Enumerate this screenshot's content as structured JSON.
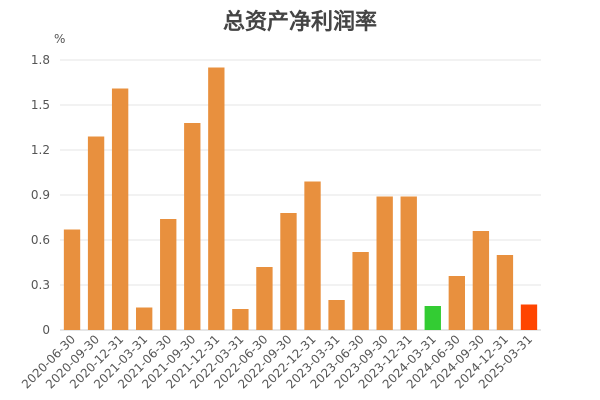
{
  "chart_data": {
    "type": "bar",
    "title": "总资产净利润率",
    "y_unit": "%",
    "ylim": [
      0,
      1.8
    ],
    "y_ticks": [
      "0",
      "0.3",
      "0.6",
      "0.9",
      "1.2",
      "1.5",
      "1.8"
    ],
    "grid": true,
    "categories": [
      "2020-06-30",
      "2020-09-30",
      "2020-12-31",
      "2021-03-31",
      "2021-06-30",
      "2021-09-30",
      "2021-12-31",
      "2022-03-31",
      "2022-06-30",
      "2022-09-30",
      "2022-12-31",
      "2023-03-31",
      "2023-06-30",
      "2023-09-30",
      "2023-12-31",
      "2024-03-31",
      "2024-06-30",
      "2024-09-30",
      "2024-12-31",
      "2025-03-31"
    ],
    "values": [
      0.67,
      1.29,
      1.61,
      0.15,
      0.74,
      1.38,
      1.75,
      0.14,
      0.42,
      0.78,
      0.99,
      0.2,
      0.52,
      0.89,
      0.89,
      0.16,
      0.36,
      0.66,
      0.5,
      0.17
    ],
    "colors": {
      "default": "#E8903E",
      "highlight": {
        "15": "#33CC33",
        "19": "#FF4500"
      }
    }
  }
}
